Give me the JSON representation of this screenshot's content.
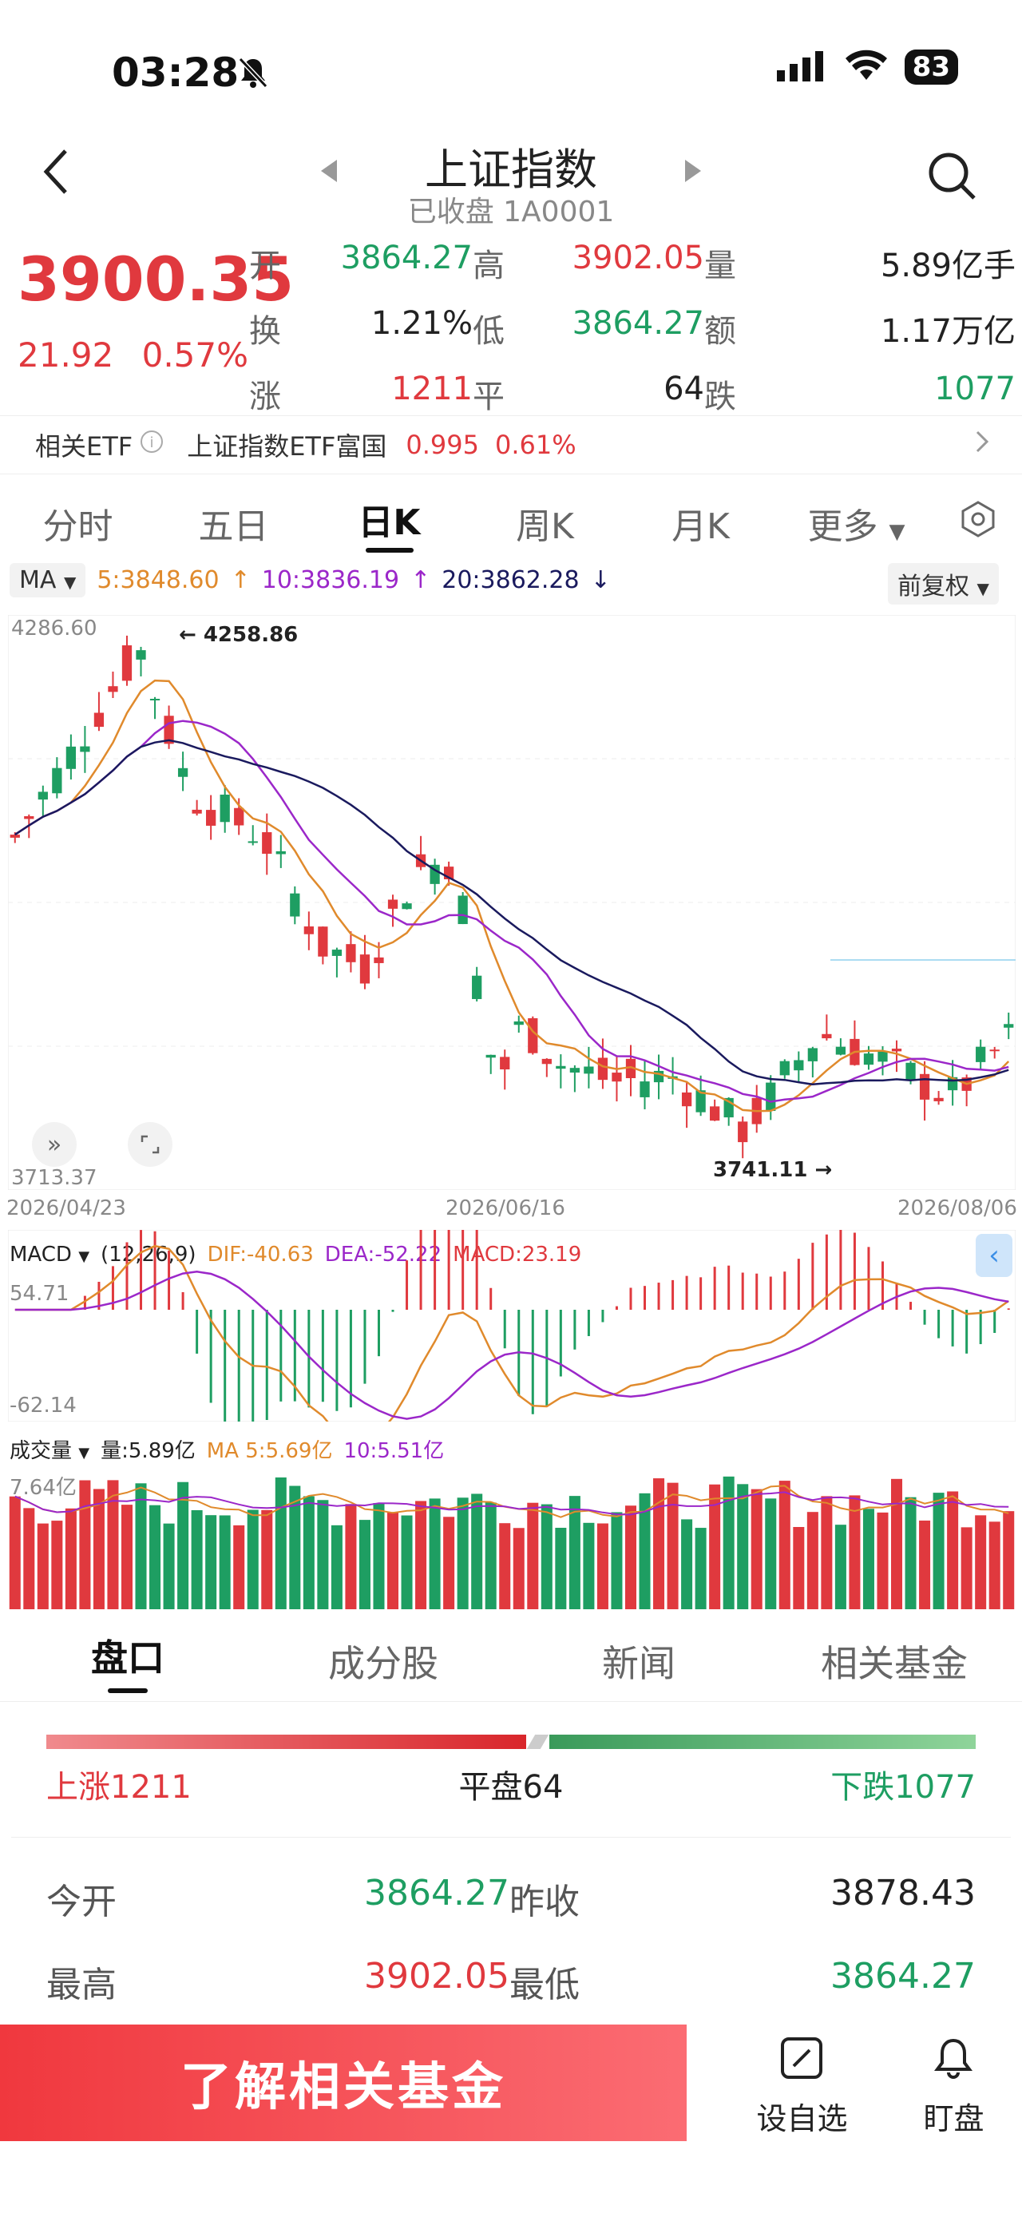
{
  "status": {
    "time": "03:28",
    "battery": "83"
  },
  "nav": {
    "title": "上证指数",
    "subtitle": "已收盘 1A0001"
  },
  "quote": {
    "price": "3900.35",
    "change": "21.92",
    "change_pct": "0.57%",
    "stats": [
      {
        "label": "开",
        "value": "3864.27",
        "color": "green"
      },
      {
        "label": "高",
        "value": "3902.05",
        "color": "red"
      },
      {
        "label": "量",
        "value": "5.89亿手",
        "color": "black"
      },
      {
        "label": "换",
        "value": "1.21%",
        "color": "black"
      },
      {
        "label": "低",
        "value": "3864.27",
        "color": "green"
      },
      {
        "label": "额",
        "value": "1.17万亿",
        "color": "black"
      },
      {
        "label": "涨",
        "value": "1211",
        "color": "red"
      },
      {
        "label": "平",
        "value": "64",
        "color": "black"
      },
      {
        "label": "跌",
        "value": "1077",
        "color": "green"
      }
    ]
  },
  "etf": {
    "label": "相关ETF",
    "name": "上证指数ETF富国",
    "price": "0.995",
    "pct": "0.61%"
  },
  "period_tabs": [
    "分时",
    "五日",
    "日K",
    "周K",
    "月K",
    "更多"
  ],
  "ma": {
    "label": "MA",
    "ma5": "5:3848.60",
    "ma10": "10:3836.19",
    "ma20": "20:3862.28",
    "adjust": "前复权"
  },
  "chart": {
    "y_top": "4286.60",
    "y_bottom": "3713.37",
    "high_label": "4258.86",
    "low_label": "3741.11",
    "dates": [
      "2026/04/23",
      "2026/06/16",
      "2026/08/06"
    ]
  },
  "macd": {
    "label": "MACD",
    "params": "(12,26,9)",
    "dif": "DIF:-40.63",
    "dea": "DEA:-52.22",
    "macd": "MACD:23.19",
    "y_top": "54.71",
    "y_bottom": "-62.14"
  },
  "volume": {
    "label": "成交量",
    "vol": "量:5.89亿",
    "ma5": "MA 5:5.69亿",
    "ma10": "10:5.51亿",
    "y_top": "7.64亿"
  },
  "bottom_tabs": [
    "盘口",
    "成分股",
    "新闻",
    "相关基金"
  ],
  "breadth": {
    "up": "上涨1211",
    "flat": "平盘64",
    "down": "下跌1077"
  },
  "details": [
    {
      "label": "今开",
      "value": "3864.27",
      "color": "green"
    },
    {
      "label": "昨收",
      "value": "3878.43",
      "color": "black"
    },
    {
      "label": "最高",
      "value": "3902.05",
      "color": "red"
    },
    {
      "label": "最低",
      "value": "3864.27",
      "color": "green"
    }
  ],
  "cta": "了解相关基金",
  "actions": [
    {
      "label": "设自选"
    },
    {
      "label": "盯盘"
    }
  ],
  "colors": {
    "up": "#e0393e",
    "down": "#1e9e62",
    "ma5": "#e08a2c",
    "ma10": "#9b27c9",
    "ma20": "#1a1a5e"
  }
}
